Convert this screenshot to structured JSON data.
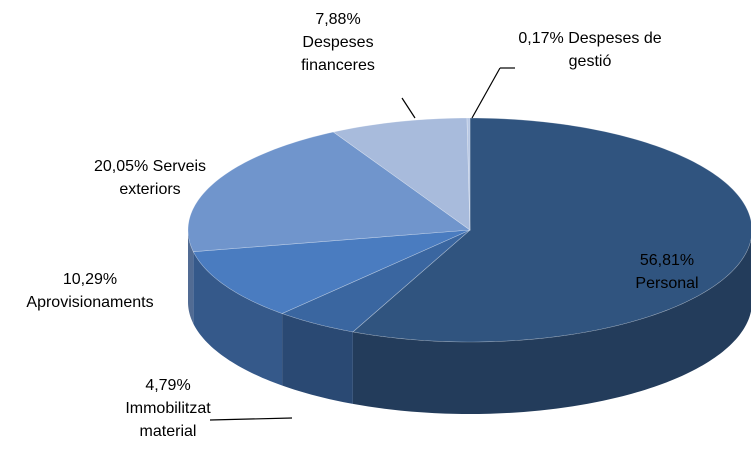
{
  "chart_data": {
    "type": "pie3d",
    "categories": [
      "Personal",
      "Immobilitzat material",
      "Aprovisionaments",
      "Serveis exteriors",
      "Despeses financeres",
      "Despeses de gestió"
    ],
    "values": [
      56.81,
      4.79,
      10.29,
      20.05,
      7.88,
      0.17
    ],
    "value_labels": [
      "56,81%",
      "4,79%",
      "10,29%",
      "20,05%",
      "7,88%",
      "0,17%"
    ],
    "colors": [
      "#30547f",
      "#3a66a0",
      "#4a7cc0",
      "#7095cc",
      "#a8bbdc",
      "#b8c8e4"
    ]
  }
}
